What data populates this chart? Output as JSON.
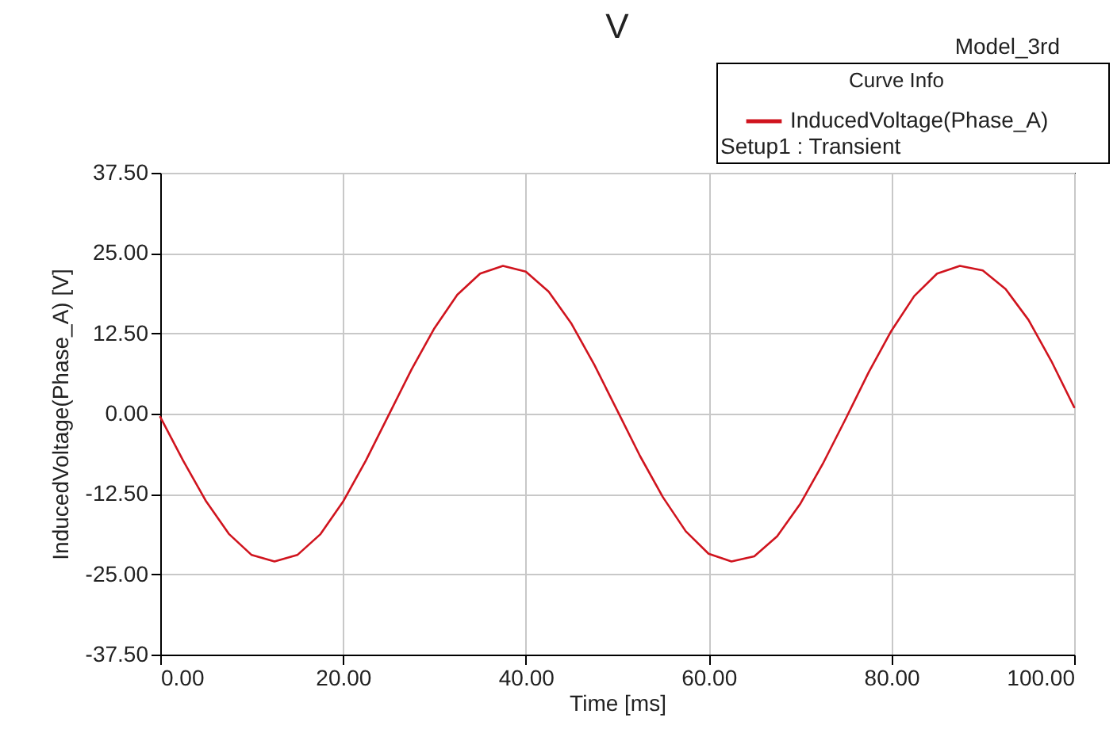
{
  "chart_data": {
    "type": "line",
    "title": "V",
    "xlabel": "Time [ms]",
    "ylabel": "InducedVoltage(Phase_A) [V]",
    "legend_title": "Curve Info",
    "annotations": [
      "Model_3rd",
      "Setup1 : Transient"
    ],
    "x": [
      0,
      2.5,
      5,
      7.5,
      10,
      12.5,
      15,
      17.5,
      20,
      22.5,
      25,
      27.5,
      30,
      32.5,
      35,
      37.5,
      40,
      42.5,
      45,
      47.5,
      50,
      52.5,
      55,
      57.5,
      60,
      62.5,
      65,
      67.5,
      70,
      72.5,
      75,
      77.5,
      80,
      82.5,
      85,
      87.5,
      90,
      92.5,
      95,
      97.5,
      100
    ],
    "series": [
      {
        "name": "InducedVoltage(Phase_A)",
        "color": "#d0141e",
        "values": [
          -0.5,
          -7.3,
          -13.6,
          -18.7,
          -22,
          -23,
          -22,
          -18.8,
          -13.7,
          -7.3,
          -0.2,
          6.9,
          13.3,
          18.5,
          21.8,
          23,
          22.1,
          19,
          14,
          7.6,
          0.5,
          -6.6,
          -13,
          -18.3,
          -21.8,
          -23,
          -22.2,
          -19.1,
          -14.1,
          -7.8,
          -0.8,
          6.4,
          12.9,
          18.3,
          21.8,
          23,
          22.3,
          19.4,
          14.6,
          8.2,
          1
        ]
      }
    ],
    "xlim": [
      0,
      100
    ],
    "ylim": [
      -37.5,
      37.5
    ],
    "xticks": [
      {
        "value": 0,
        "label": "0.00"
      },
      {
        "value": 20,
        "label": "20.00"
      },
      {
        "value": 40,
        "label": "40.00"
      },
      {
        "value": 60,
        "label": "60.00"
      },
      {
        "value": 80,
        "label": "80.00"
      },
      {
        "value": 100,
        "label": "100.00"
      }
    ],
    "yticks": [
      {
        "value": -37.5,
        "label": "-37.50"
      },
      {
        "value": -25,
        "label": "-25.00"
      },
      {
        "value": -12.5,
        "label": "-12.50"
      },
      {
        "value": 0,
        "label": "0.00"
      },
      {
        "value": 12.5,
        "label": "12.50"
      },
      {
        "value": 25,
        "label": "25.00"
      },
      {
        "value": 37.5,
        "label": "37.50"
      }
    ],
    "grid": true,
    "legend": "top right",
    "marker": "none",
    "line_style": "solid"
  }
}
